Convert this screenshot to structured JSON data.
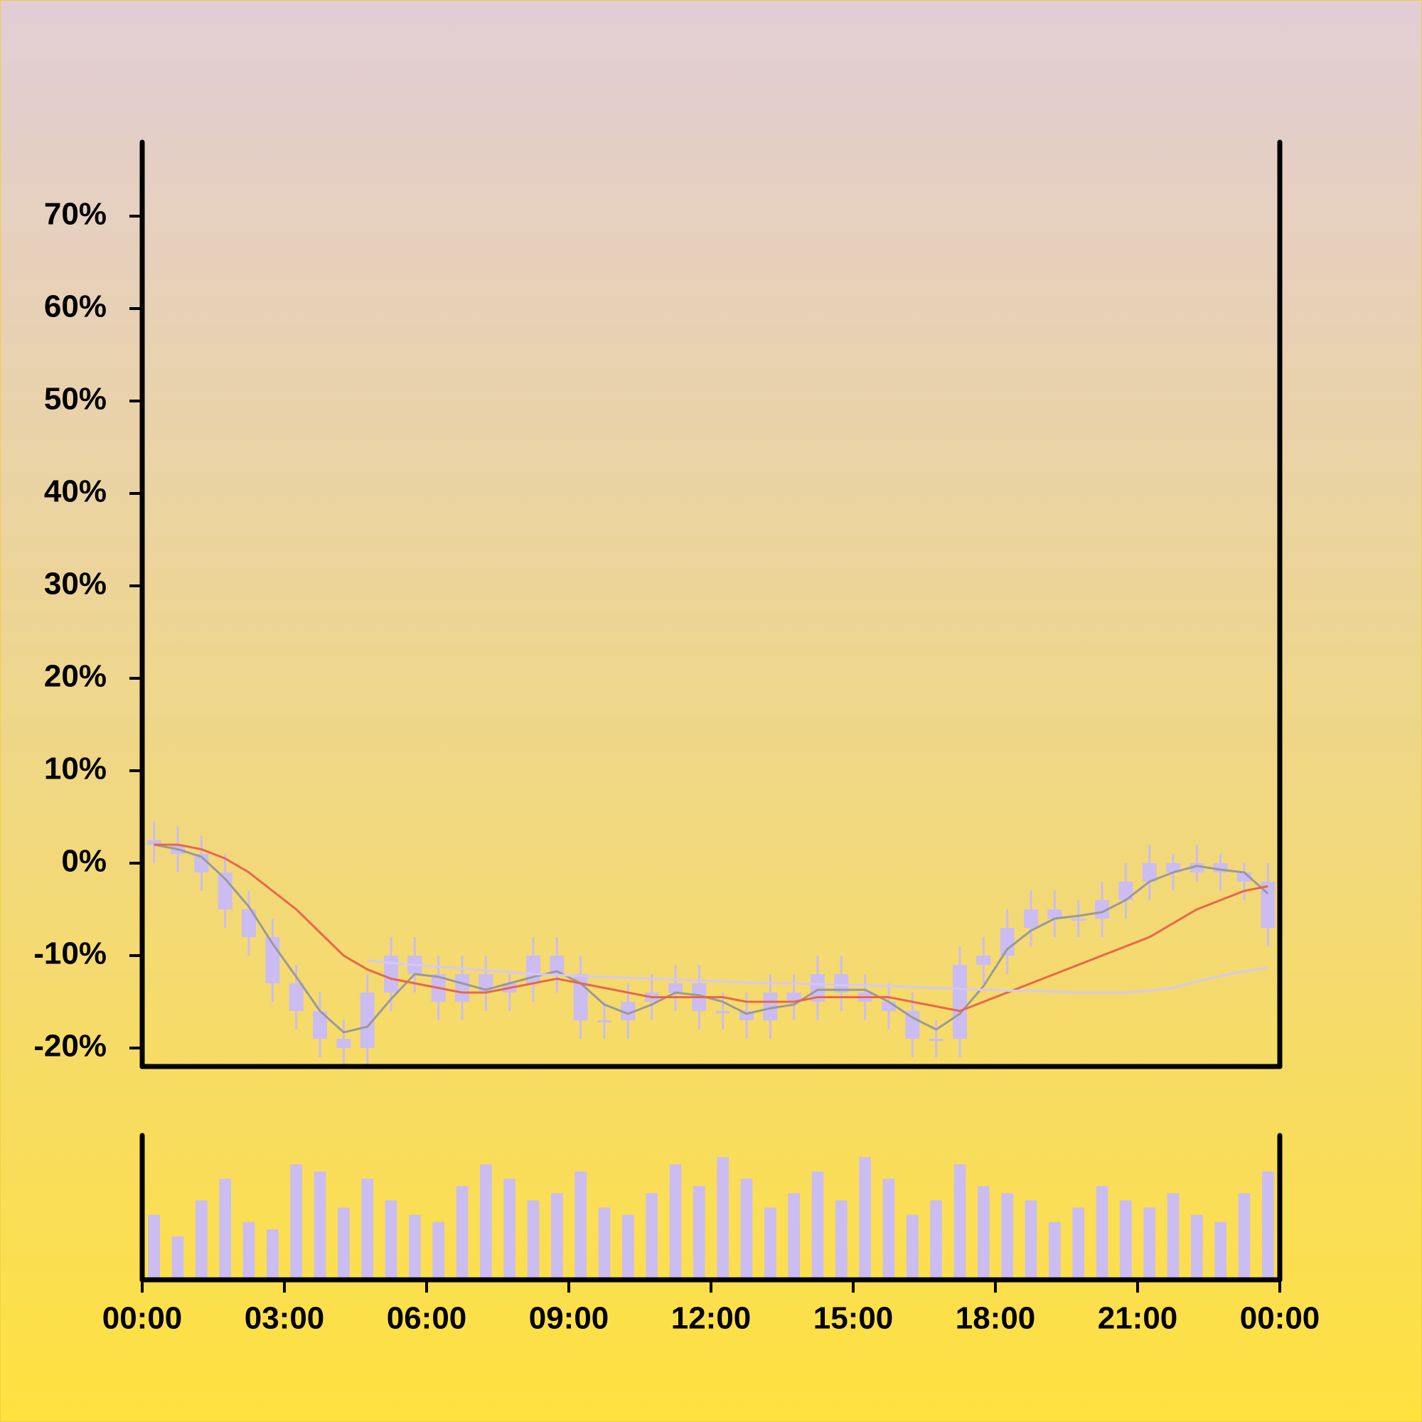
{
  "chart_data": [
    {
      "type": "candlestick",
      "x": [
        0.25,
        0.75,
        1.25,
        1.75,
        2.25,
        2.75,
        3.25,
        3.75,
        4.25,
        4.75,
        5.25,
        5.75,
        6.25,
        6.75,
        7.25,
        7.75,
        8.25,
        8.75,
        9.25,
        9.75,
        10.25,
        10.75,
        11.25,
        11.75,
        12.25,
        12.75,
        13.25,
        13.75,
        14.25,
        14.75,
        15.25,
        15.75,
        16.25,
        16.75,
        17.25,
        17.75,
        18.25,
        18.75,
        19.25,
        19.75,
        20.25,
        20.75,
        21.25,
        21.75,
        22.25,
        22.75,
        23.25,
        23.75
      ],
      "open": [
        2.5,
        2,
        1,
        -1,
        -5,
        -8,
        -13,
        -16,
        -19,
        -20,
        -14,
        -10,
        -12,
        -15,
        -12,
        -14,
        -13,
        -10,
        -12,
        -17,
        -17,
        -15,
        -14,
        -13,
        -16,
        -16,
        -17,
        -14,
        -15,
        -12,
        -14,
        -15,
        -16,
        -19,
        -19,
        -11,
        -10,
        -7,
        -5,
        -6,
        -6,
        -4,
        -2,
        0,
        -1,
        0,
        -1,
        -2
      ],
      "high": [
        4.5,
        4,
        3,
        1,
        -3,
        -6,
        -11,
        -14,
        -17,
        -12,
        -8,
        -8,
        -10,
        -10,
        -10,
        -12,
        -8,
        -8,
        -10,
        -15,
        -13,
        -12,
        -11,
        -11,
        -14,
        -14,
        -12,
        -12,
        -10,
        -10,
        -12,
        -13,
        -14,
        -17,
        -9,
        -8,
        -5,
        -3,
        -3,
        -4,
        -2,
        0,
        2,
        1,
        2,
        1,
        0,
        0
      ],
      "low": [
        0,
        -1,
        -3,
        -7,
        -10,
        -15,
        -18,
        -21,
        -22,
        -22,
        -16,
        -14,
        -17,
        -17,
        -16,
        -16,
        -15,
        -14,
        -19,
        -19,
        -19,
        -17,
        -16,
        -18,
        -18,
        -19,
        -19,
        -17,
        -17,
        -16,
        -17,
        -18,
        -21,
        -21,
        -21,
        -13,
        -12,
        -9,
        -8,
        -8,
        -8,
        -6,
        -4,
        -3,
        -2,
        -3,
        -4,
        -9
      ],
      "close": [
        2,
        1,
        -1,
        -5,
        -8,
        -13,
        -16,
        -19,
        -20,
        -14,
        -10,
        -12,
        -15,
        -12,
        -14,
        -13,
        -10,
        -12,
        -17,
        -17,
        -15,
        -14,
        -13,
        -16,
        -16,
        -17,
        -14,
        -15,
        -12,
        -14,
        -15,
        -16,
        -19,
        -19,
        -11,
        -10,
        -7,
        -5,
        -6,
        -6,
        -4,
        -2,
        0,
        -1,
        0,
        -1,
        -2,
        -7
      ],
      "color": "#cbbcf2",
      "series": [
        {
          "color": "#9a9a9a",
          "values": [
            2,
            1.5,
            0.7,
            -1.7,
            -4.7,
            -8.7,
            -12.3,
            -16,
            -18.3,
            -17.7,
            -14.7,
            -12,
            -12.3,
            -13,
            -13.7,
            -13,
            -12.3,
            -11.7,
            -13,
            -15.3,
            -16.3,
            -15.3,
            -14,
            -14.3,
            -15,
            -16.3,
            -15.7,
            -15.3,
            -13.7,
            -13.7,
            -13.7,
            -15,
            -16.7,
            -18,
            -16.3,
            -13.3,
            -9.3,
            -7.3,
            -6,
            -5.7,
            -5.3,
            -4,
            -2,
            -1,
            -0.3,
            -0.7,
            -1,
            -3.3
          ]
        },
        {
          "color": "#e8674a",
          "values": [
            2,
            2,
            1.5,
            0.5,
            -1,
            -3,
            -5,
            -7.5,
            -10,
            -11.5,
            -12.5,
            -13,
            -13.5,
            -14,
            -14,
            -13.5,
            -13,
            -12.5,
            -13,
            -13.5,
            -14,
            -14.5,
            -14.5,
            -14.5,
            -14.5,
            -15,
            -15,
            -15,
            -14.5,
            -14.5,
            -14.5,
            -14.5,
            -15,
            -15.5,
            -16,
            -15,
            -14,
            -13,
            -12,
            -11,
            -10,
            -9,
            -8,
            -6.5,
            -5,
            -4,
            -3,
            -2.5
          ]
        },
        {
          "color": "#d6c8f2",
          "values": [
            null,
            null,
            null,
            null,
            null,
            null,
            null,
            null,
            null,
            -10.5,
            -10.8,
            -11,
            -11.2,
            -11.4,
            -11.6,
            -11.8,
            -12,
            -12.1,
            -12.2,
            -12.3,
            -12.4,
            -12.5,
            -12.6,
            -12.7,
            -12.8,
            -12.9,
            -13,
            -13,
            -13.1,
            -13.2,
            -13.2,
            -13.3,
            -13.4,
            -13.5,
            -13.6,
            -13.7,
            -13.8,
            -13.8,
            -13.9,
            -14,
            -14,
            -14,
            -13.8,
            -13.5,
            -12.8,
            -12.2,
            -11.7,
            -11.3
          ]
        }
      ],
      "xlim": [
        0,
        24
      ],
      "ylim": [
        -22,
        78
      ],
      "yticks": [
        {
          "value": -20,
          "label": "-20%"
        },
        {
          "value": -10,
          "label": "-10%"
        },
        {
          "value": 0,
          "label": "0%"
        },
        {
          "value": 10,
          "label": "10%"
        },
        {
          "value": 20,
          "label": "20%"
        },
        {
          "value": 30,
          "label": "30%"
        },
        {
          "value": 40,
          "label": "40%"
        },
        {
          "value": 50,
          "label": "50%"
        },
        {
          "value": 60,
          "label": "60%"
        },
        {
          "value": 70,
          "label": "70%"
        }
      ]
    },
    {
      "type": "bar",
      "x": [
        0.25,
        0.75,
        1.25,
        1.75,
        2.25,
        2.75,
        3.25,
        3.75,
        4.25,
        4.75,
        5.25,
        5.75,
        6.25,
        6.75,
        7.25,
        7.75,
        8.25,
        8.75,
        9.25,
        9.75,
        10.25,
        10.75,
        11.25,
        11.75,
        12.25,
        12.75,
        13.25,
        13.75,
        14.25,
        14.75,
        15.25,
        15.75,
        16.25,
        16.75,
        17.25,
        17.75,
        18.25,
        18.75,
        19.25,
        19.75,
        20.25,
        20.75,
        21.25,
        21.75,
        22.25,
        22.75,
        23.25,
        23.75
      ],
      "values": [
        45,
        30,
        55,
        70,
        40,
        35,
        80,
        75,
        50,
        70,
        55,
        45,
        40,
        65,
        80,
        70,
        55,
        60,
        75,
        50,
        45,
        60,
        80,
        65,
        85,
        70,
        50,
        60,
        75,
        55,
        85,
        70,
        45,
        55,
        80,
        65,
        60,
        55,
        40,
        50,
        65,
        55,
        50,
        60,
        45,
        40,
        60,
        75
      ],
      "color": "#cbbcf2",
      "xlim": [
        0,
        24
      ],
      "ylim": [
        0,
        100
      ],
      "xticks": [
        {
          "value": 0,
          "label": "00:00"
        },
        {
          "value": 3,
          "label": "03:00"
        },
        {
          "value": 6,
          "label": "06:00"
        },
        {
          "value": 9,
          "label": "09:00"
        },
        {
          "value": 12,
          "label": "12:00"
        },
        {
          "value": 15,
          "label": "15:00"
        },
        {
          "value": 18,
          "label": "18:00"
        },
        {
          "value": 21,
          "label": "21:00"
        },
        {
          "value": 24,
          "label": "00:00"
        }
      ]
    }
  ]
}
